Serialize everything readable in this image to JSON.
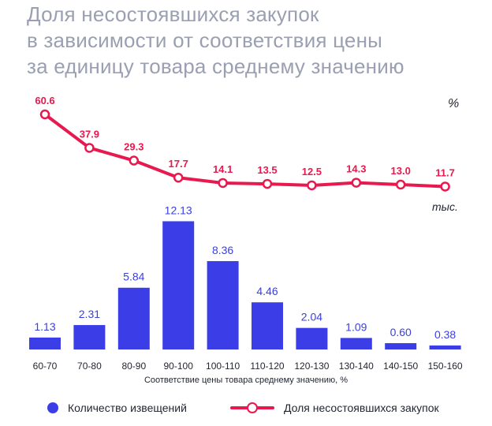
{
  "title_lines": [
    "Доля несостоявшихся закупок",
    "в зависимости от соответствия цены",
    "за единицу товара среднему значению"
  ],
  "units": {
    "line": "%",
    "bar": "тыс."
  },
  "legend": {
    "bars": "Количество извещений",
    "line": "Доля несостоявшихся закупок"
  },
  "colors": {
    "bar": "#3b3ee6",
    "line": "#e8194e",
    "title": "#9aa0b1"
  },
  "chart_data": {
    "type": "bar",
    "categories": [
      "60-70",
      "70-80",
      "80-90",
      "90-100",
      "100-110",
      "110-120",
      "120-130",
      "130-140",
      "140-150",
      "150-160"
    ],
    "xlabel": "Соответствие цены товара среднему значению, %",
    "series": [
      {
        "name": "Количество извещений",
        "type": "bar",
        "unit": "тыс.",
        "values": [
          1.13,
          2.31,
          5.84,
          12.13,
          8.36,
          4.46,
          2.04,
          1.09,
          0.6,
          0.38
        ],
        "labels": [
          "1.13",
          "2.31",
          "5.84",
          "12.13",
          "8.36",
          "4.46",
          "2.04",
          "1.09",
          "0.60",
          "0.38"
        ]
      },
      {
        "name": "Доля несостоявшихся закупок",
        "type": "line",
        "unit": "%",
        "values": [
          60.6,
          37.9,
          29.3,
          17.7,
          14.1,
          13.5,
          12.5,
          14.3,
          13.0,
          11.7
        ],
        "labels": [
          "60.6",
          "37.9",
          "29.3",
          "17.7",
          "14.1",
          "13.5",
          "12.5",
          "14.3",
          "13.0",
          "11.7"
        ]
      }
    ]
  }
}
